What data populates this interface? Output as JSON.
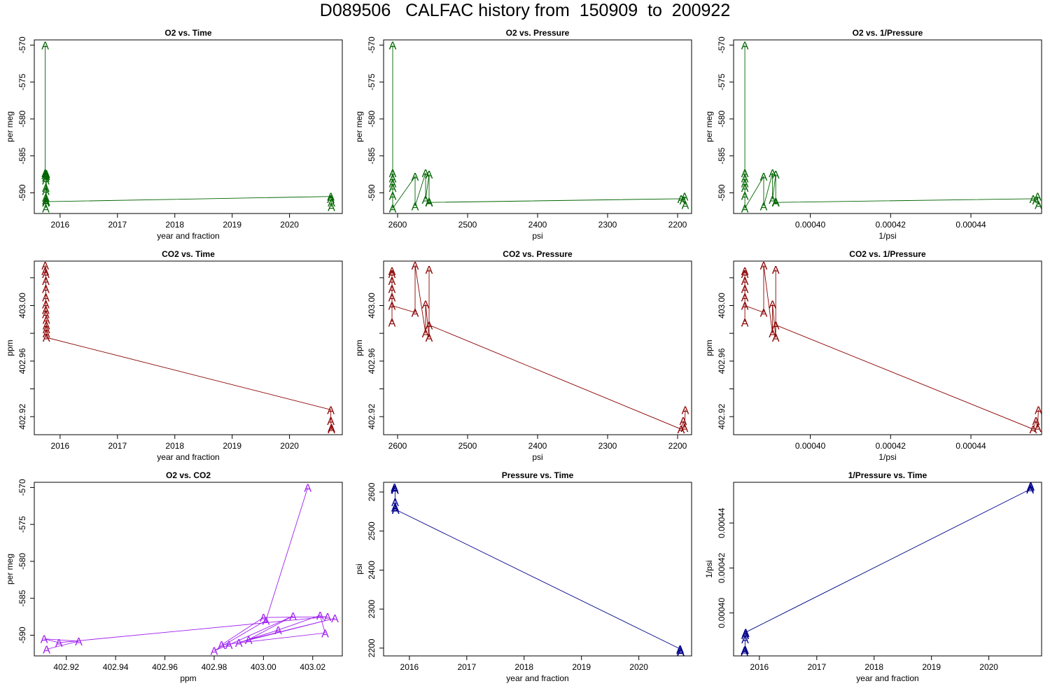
{
  "title": "D089506   CALFAC history from  150909  to  200922",
  "chart_data": [
    {
      "type": "line",
      "title": "O2 vs. Time",
      "xlabel": "year and fraction",
      "ylabel": "per meg",
      "color": "#006400",
      "marker": "A",
      "xlim": [
        2015.55,
        2020.92
      ],
      "ylim": [
        -592.8,
        -569.3
      ],
      "reverse_x": false,
      "xticks": [
        2016,
        2017,
        2018,
        2019,
        2020
      ],
      "xtick_labels": [
        "2016",
        "2017",
        "2018",
        "2019",
        "2020"
      ],
      "yticks": [
        -570,
        -575,
        -580,
        -585,
        -590
      ],
      "ytick_labels": [
        "-570",
        "-575",
        "-580",
        "-585",
        "-590"
      ],
      "x": [
        2015.74,
        2015.74,
        2015.74,
        2015.75,
        2015.75,
        2015.75,
        2015.75,
        2015.75,
        2015.75,
        2015.75,
        2015.75,
        2015.76,
        2015.76,
        2015.76,
        2020.72,
        2020.72,
        2020.73,
        2020.73
      ],
      "y": [
        -570.0,
        -587.3,
        -587.6,
        -587.9,
        -588.3,
        -589.3,
        -589.7,
        -590.6,
        -591.0,
        -591.3,
        -592.1,
        -587.4,
        -587.7,
        -591.2,
        -590.5,
        -590.8,
        -591.3,
        -591.9
      ]
    },
    {
      "type": "line",
      "title": "O2 vs. Pressure",
      "xlabel": "psi",
      "ylabel": "per meg",
      "color": "#006400",
      "marker": "A",
      "xlim": [
        2620,
        2180
      ],
      "ylim": [
        -592.8,
        -569.3
      ],
      "reverse_x": true,
      "xticks": [
        2600,
        2500,
        2400,
        2300,
        2200
      ],
      "xtick_labels": [
        "2600",
        "2500",
        "2400",
        "2300",
        "2200"
      ],
      "yticks": [
        -570,
        -575,
        -580,
        -585,
        -590
      ],
      "ytick_labels": [
        "-570",
        "-575",
        "-580",
        "-585",
        "-590"
      ],
      "x": [
        2607,
        2607,
        2607,
        2607,
        2607,
        2607,
        2607,
        2575,
        2575,
        2560,
        2560,
        2555,
        2555,
        2555,
        2195,
        2192,
        2190,
        2189
      ],
      "y": [
        -570.0,
        -587.3,
        -588.0,
        -588.7,
        -589.3,
        -590.4,
        -592.1,
        -587.8,
        -591.8,
        -587.3,
        -590.9,
        -587.5,
        -591.2,
        -591.3,
        -590.8,
        -591.0,
        -590.5,
        -591.6
      ]
    },
    {
      "type": "line",
      "title": "O2 vs. 1/Pressure",
      "xlabel": "1/psi",
      "ylabel": "per meg",
      "color": "#006400",
      "marker": "A",
      "xlim": [
        0.0003809,
        0.0004576
      ],
      "ylim": [
        -592.8,
        -569.3
      ],
      "reverse_x": false,
      "xticks": [
        0.0004,
        0.00042,
        0.00044
      ],
      "xtick_labels": [
        "0.00040",
        "0.00042",
        "0.00044"
      ],
      "yticks": [
        -570,
        -575,
        -580,
        -585,
        -590
      ],
      "ytick_labels": [
        "-570",
        "-575",
        "-580",
        "-585",
        "-590"
      ],
      "x": [
        0.0003837,
        0.0003837,
        0.0003837,
        0.0003837,
        0.0003837,
        0.0003837,
        0.0003837,
        0.0003884,
        0.0003884,
        0.0003906,
        0.0003906,
        0.0003914,
        0.0003914,
        0.0003914,
        0.0004555,
        0.0004562,
        0.0004566,
        0.0004568
      ],
      "y": [
        -570.0,
        -587.3,
        -588.0,
        -588.7,
        -589.3,
        -590.4,
        -592.1,
        -587.8,
        -591.8,
        -587.3,
        -590.9,
        -587.5,
        -591.2,
        -591.3,
        -590.8,
        -591.0,
        -590.5,
        -591.6
      ]
    },
    {
      "type": "line",
      "title": "CO2 vs. Time",
      "xlabel": "year and fraction",
      "ylabel": "ppm",
      "color": "#8B0000",
      "marker": "A",
      "xlim": [
        2015.55,
        2020.92
      ],
      "ylim": [
        402.907,
        403.032
      ],
      "reverse_x": false,
      "xticks": [
        2016,
        2017,
        2018,
        2019,
        2020
      ],
      "xtick_labels": [
        "2016",
        "2017",
        "2018",
        "2019",
        "2020"
      ],
      "yticks": [
        402.92,
        402.94,
        402.96,
        402.98,
        403.0,
        403.02
      ],
      "ytick_labels": [
        "402.92",
        "",
        "402.96",
        "",
        "403.00",
        ""
      ],
      "x": [
        2015.74,
        2015.74,
        2015.75,
        2015.75,
        2015.75,
        2015.75,
        2015.75,
        2015.75,
        2015.75,
        2015.76,
        2015.76,
        2015.76,
        2015.76,
        2015.76,
        2020.72,
        2020.72,
        2020.73,
        2020.73
      ],
      "y": [
        403.029,
        403.025,
        403.023,
        403.018,
        403.012,
        403.006,
        403.001,
        402.997,
        402.994,
        402.99,
        402.986,
        402.983,
        402.98,
        402.977,
        402.925,
        402.917,
        402.912,
        402.911
      ]
    },
    {
      "type": "line",
      "title": "CO2 vs. Pressure",
      "xlabel": "psi",
      "ylabel": "ppm",
      "color": "#8B0000",
      "marker": "A",
      "xlim": [
        2620,
        2180
      ],
      "ylim": [
        402.907,
        403.032
      ],
      "reverse_x": true,
      "xticks": [
        2600,
        2500,
        2400,
        2300,
        2200
      ],
      "xtick_labels": [
        "2600",
        "2500",
        "2400",
        "2300",
        "2200"
      ],
      "yticks": [
        402.92,
        402.94,
        402.96,
        402.98,
        403.0,
        403.02
      ],
      "ytick_labels": [
        "402.92",
        "",
        "402.96",
        "",
        "403.00",
        ""
      ],
      "x": [
        2608,
        2608,
        2608,
        2608,
        2608,
        2608,
        2608,
        2575,
        2575,
        2560,
        2560,
        2555,
        2555,
        2555,
        2195,
        2192,
        2190,
        2189
      ],
      "y": [
        402.988,
        403.025,
        403.023,
        403.018,
        403.012,
        403.006,
        403.0,
        402.995,
        403.029,
        402.98,
        403.001,
        402.977,
        403.026,
        402.986,
        402.911,
        402.917,
        402.912,
        402.925
      ]
    },
    {
      "type": "line",
      "title": "CO2 vs. 1/Pressure",
      "xlabel": "1/psi",
      "ylabel": "ppm",
      "color": "#8B0000",
      "marker": "A",
      "xlim": [
        0.0003809,
        0.0004576
      ],
      "ylim": [
        402.907,
        403.032
      ],
      "reverse_x": false,
      "xticks": [
        0.0004,
        0.00042,
        0.00044
      ],
      "xtick_labels": [
        "0.00040",
        "0.00042",
        "0.00044"
      ],
      "yticks": [
        402.92,
        402.94,
        402.96,
        402.98,
        403.0,
        403.02
      ],
      "ytick_labels": [
        "402.92",
        "",
        "402.96",
        "",
        "403.00",
        ""
      ],
      "x": [
        0.0003837,
        0.0003837,
        0.0003837,
        0.0003837,
        0.0003837,
        0.0003837,
        0.0003837,
        0.0003884,
        0.0003884,
        0.0003906,
        0.0003906,
        0.0003914,
        0.0003914,
        0.0003914,
        0.0004555,
        0.0004562,
        0.0004566,
        0.0004568
      ],
      "y": [
        402.988,
        403.025,
        403.023,
        403.018,
        403.012,
        403.006,
        403.0,
        402.995,
        403.029,
        402.98,
        403.001,
        402.977,
        403.026,
        402.986,
        402.911,
        402.917,
        402.912,
        402.925
      ]
    },
    {
      "type": "line",
      "title": "O2 vs. CO2",
      "xlabel": "ppm",
      "ylabel": "per meg",
      "color": "#A020F0",
      "marker": "A",
      "xlim": [
        402.907,
        403.032
      ],
      "ylim": [
        -592.8,
        -569.3
      ],
      "reverse_x": false,
      "xticks": [
        402.92,
        402.94,
        402.96,
        402.98,
        403.0,
        403.02
      ],
      "xtick_labels": [
        "402.92",
        "402.94",
        "402.96",
        "402.98",
        "403.00",
        "403.02"
      ],
      "yticks": [
        -570,
        -575,
        -580,
        -585,
        -590
      ],
      "ytick_labels": [
        "-570",
        "-575",
        "-580",
        "-585",
        "-590"
      ],
      "x": [
        403.018,
        403.001,
        402.98,
        402.986,
        403.012,
        402.994,
        403.029,
        402.99,
        403.006,
        403.023,
        403.025,
        402.983,
        403.0,
        403.026,
        402.917,
        402.911,
        402.925,
        402.912
      ],
      "y": [
        -570.0,
        -588.0,
        -592.1,
        -591.3,
        -587.4,
        -590.6,
        -587.7,
        -591.0,
        -589.3,
        -587.3,
        -589.7,
        -591.3,
        -587.6,
        -587.5,
        -591.0,
        -590.5,
        -590.8,
        -591.9
      ]
    },
    {
      "type": "line",
      "title": "Pressure vs. Time",
      "xlabel": "year and fraction",
      "ylabel": "psi",
      "color": "#00008B",
      "marker": "A",
      "xlim": [
        2015.55,
        2020.92
      ],
      "ylim": [
        2180,
        2625
      ],
      "reverse_x": false,
      "xticks": [
        2016,
        2017,
        2018,
        2019,
        2020
      ],
      "xtick_labels": [
        "2016",
        "2017",
        "2018",
        "2019",
        "2020"
      ],
      "yticks": [
        2200,
        2300,
        2400,
        2500,
        2600
      ],
      "ytick_labels": [
        "2200",
        "2300",
        "2400",
        "2500",
        "2600"
      ],
      "x": [
        2015.74,
        2015.74,
        2015.75,
        2015.75,
        2015.75,
        2015.75,
        2015.76,
        2015.76,
        2020.72,
        2020.72,
        2020.73,
        2020.73
      ],
      "y": [
        2612,
        2608,
        2606,
        2575,
        2562,
        2560,
        2556,
        2555,
        2198,
        2195,
        2192,
        2190
      ]
    },
    {
      "type": "line",
      "title": "1/Pressure vs. Time",
      "xlabel": "year and fraction",
      "ylabel": "1/psi",
      "color": "#00008B",
      "marker": "A",
      "xlim": [
        2015.55,
        2020.92
      ],
      "ylim": [
        0.0003809,
        0.0004581
      ],
      "reverse_x": false,
      "xticks": [
        2016,
        2017,
        2018,
        2019,
        2020
      ],
      "xtick_labels": [
        "2016",
        "2017",
        "2018",
        "2019",
        "2020"
      ],
      "yticks": [
        0.0004,
        0.00042,
        0.00044
      ],
      "ytick_labels": [
        "0.00040",
        "0.00042",
        "0.00044"
      ],
      "x": [
        2015.74,
        2015.74,
        2015.75,
        2015.75,
        2015.75,
        2015.75,
        2015.76,
        2015.76,
        2020.72,
        2020.72,
        2020.73,
        2020.73
      ],
      "y": [
        0.0003828,
        0.0003834,
        0.0003837,
        0.0003884,
        0.0003903,
        0.0003906,
        0.0003912,
        0.0003914,
        0.000455,
        0.0004556,
        0.0004562,
        0.0004566
      ]
    }
  ]
}
